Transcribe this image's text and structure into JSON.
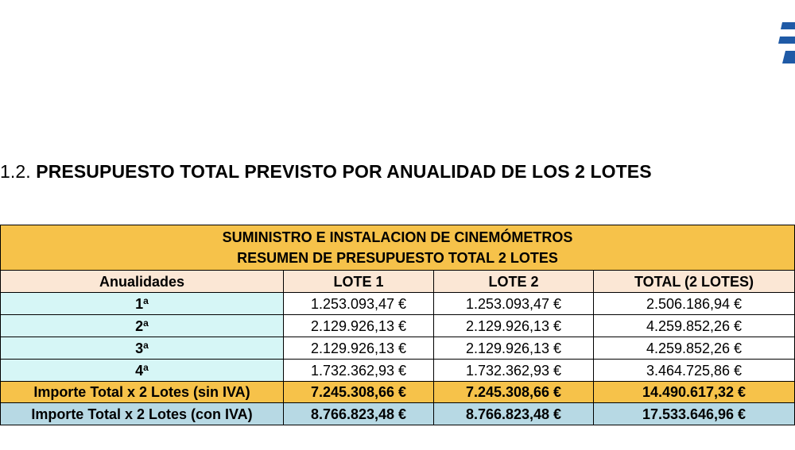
{
  "heading": {
    "number": "1.2.",
    "text": "PRESUPUESTO TOTAL PREVISTO POR ANUALIDAD DE LOS 2 LOTES"
  },
  "colors": {
    "orange": "#f6c24a",
    "peach": "#fbe7d5",
    "light_cyan": "#d6f6f6",
    "light_blue": "#b7d9e4",
    "logo_blue": "#1f5aa6"
  },
  "table": {
    "title_line1": "SUMINISTRO  E  INSTALACION  DE CINEMÓMETROS",
    "title_line2": "RESUMEN DE PRESUPUESTO  TOTAL 2 LOTES",
    "headers": [
      "Anualidades",
      "LOTE 1",
      "LOTE 2",
      "TOTAL (2 LOTES)"
    ],
    "years": [
      {
        "label": "1",
        "sup": "a",
        "lote1": "1.253.093,47 €",
        "lote2": "1.253.093,47 €",
        "total": "2.506.186,94 €"
      },
      {
        "label": "2",
        "sup": "a",
        "lote1": "2.129.926,13 €",
        "lote2": "2.129.926,13 €",
        "total": "4.259.852,26 €"
      },
      {
        "label": "3",
        "sup": "a",
        "lote1": "2.129.926,13 €",
        "lote2": "2.129.926,13 €",
        "total": "4.259.852,26 €"
      },
      {
        "label": "4",
        "sup": "a",
        "lote1": "1.732.362,93 €",
        "lote2": "1.732.362,93 €",
        "total": "3.464.725,86 €"
      }
    ],
    "sin_iva": {
      "label": "Importe Total x 2 Lotes (sin IVA)",
      "lote1": "7.245.308,66 €",
      "lote2": "7.245.308,66 €",
      "total": "14.490.617,32 €"
    },
    "con_iva": {
      "label": "Importe Total x 2 Lotes  (con IVA)",
      "lote1": "8.766.823,48 €",
      "lote2": "8.766.823,48 €",
      "total": "17.533.646,96 €"
    }
  }
}
